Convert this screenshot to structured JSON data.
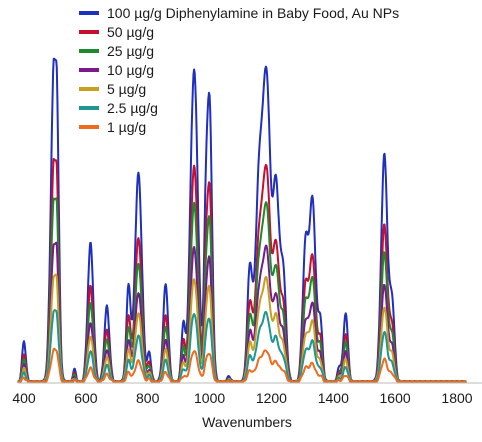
{
  "chart_data": {
    "type": "line",
    "title": "",
    "xlabel": "Wavenumbers",
    "ylabel": "",
    "xlim": [
      380,
      1830
    ],
    "ylim": [
      0,
      100
    ],
    "x_ticks": [
      400,
      600,
      800,
      1000,
      1200,
      1400,
      1600,
      1800
    ],
    "grid": false,
    "legend_position": "top",
    "peaks": [
      {
        "x": 400,
        "width": 6,
        "rel": 0.13
      },
      {
        "x": 497,
        "width": 10,
        "rel": 1.0
      },
      {
        "x": 508,
        "width": 6,
        "rel": 0.35
      },
      {
        "x": 563,
        "width": 5,
        "rel": 0.04
      },
      {
        "x": 615,
        "width": 9,
        "rel": 0.44
      },
      {
        "x": 668,
        "width": 8,
        "rel": 0.24
      },
      {
        "x": 738,
        "width": 7,
        "rel": 0.3
      },
      {
        "x": 770,
        "width": 11,
        "rel": 0.66
      },
      {
        "x": 805,
        "width": 6,
        "rel": 0.09
      },
      {
        "x": 858,
        "width": 8,
        "rel": 0.31
      },
      {
        "x": 915,
        "width": 6,
        "rel": 0.18
      },
      {
        "x": 950,
        "width": 12,
        "rel": 0.99
      },
      {
        "x": 987,
        "width": 6,
        "rel": 0.4
      },
      {
        "x": 1000,
        "width": 8,
        "rel": 0.87
      },
      {
        "x": 1063,
        "width": 5,
        "rel": 0.02
      },
      {
        "x": 1130,
        "width": 8,
        "rel": 0.35
      },
      {
        "x": 1160,
        "width": 12,
        "rel": 0.62
      },
      {
        "x": 1185,
        "width": 12,
        "rel": 0.91
      },
      {
        "x": 1215,
        "width": 10,
        "rel": 0.6
      },
      {
        "x": 1238,
        "width": 9,
        "rel": 0.34
      },
      {
        "x": 1310,
        "width": 9,
        "rel": 0.42
      },
      {
        "x": 1333,
        "width": 10,
        "rel": 0.57
      },
      {
        "x": 1358,
        "width": 7,
        "rel": 0.19
      },
      {
        "x": 1420,
        "width": 6,
        "rel": 0.05
      },
      {
        "x": 1440,
        "width": 7,
        "rel": 0.22
      },
      {
        "x": 1565,
        "width": 10,
        "rel": 0.72
      },
      {
        "x": 1590,
        "width": 8,
        "rel": 0.25
      }
    ],
    "series": [
      {
        "name": "100 µg/g Diphenylamine in Baby Food, Au NPs",
        "color": "#1f2fbf",
        "scale": 100
      },
      {
        "name": "50 µg/g",
        "color": "#c8102e",
        "scale": 69
      },
      {
        "name": "25 µg/g",
        "color": "#1e8a2e",
        "scale": 57
      },
      {
        "name": "10 µg/g",
        "color": "#7a1a8c",
        "scale": 43
      },
      {
        "name": "5 µg/g",
        "color": "#c8a020",
        "scale": 33
      },
      {
        "name": "2.5 µg/g",
        "color": "#1f9696",
        "scale": 22
      },
      {
        "name": "1 µg/g",
        "color": "#ef6c1f",
        "scale": 10
      }
    ]
  }
}
